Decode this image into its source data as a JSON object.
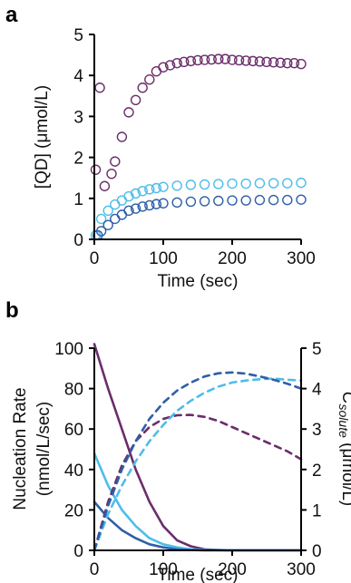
{
  "chart_data": [
    {
      "panel": "a",
      "type": "scatter",
      "xlabel": "Time (sec)",
      "ylabel": "[QD] (μmol/L)",
      "xlim": [
        0,
        300
      ],
      "ylim": [
        0,
        5
      ],
      "xticks": [
        "0",
        "100",
        "200",
        "300"
      ],
      "yticks": [
        "0",
        "1",
        "2",
        "3",
        "4",
        "5"
      ],
      "marker": "open-circle",
      "series": [
        {
          "color": "#6b2d6b",
          "x": [
            2,
            8,
            15,
            25,
            30,
            40,
            50,
            60,
            70,
            80,
            90,
            100,
            110,
            120,
            130,
            140,
            150,
            160,
            170,
            180,
            190,
            200,
            210,
            220,
            230,
            240,
            250,
            260,
            270,
            280,
            290,
            300
          ],
          "y": [
            1.7,
            3.7,
            1.3,
            1.6,
            1.9,
            2.5,
            3.1,
            3.4,
            3.7,
            3.9,
            4.1,
            4.2,
            4.25,
            4.3,
            4.33,
            4.35,
            4.37,
            4.38,
            4.39,
            4.4,
            4.4,
            4.38,
            4.37,
            4.36,
            4.35,
            4.34,
            4.33,
            4.32,
            4.31,
            4.3,
            4.3,
            4.28
          ]
        },
        {
          "color": "#4dbde8",
          "x": [
            2,
            10,
            20,
            30,
            40,
            50,
            60,
            70,
            80,
            90,
            100,
            120,
            140,
            160,
            180,
            200,
            220,
            240,
            260,
            280,
            300
          ],
          "y": [
            0.1,
            0.5,
            0.7,
            0.85,
            0.95,
            1.05,
            1.12,
            1.18,
            1.22,
            1.25,
            1.28,
            1.31,
            1.33,
            1.34,
            1.35,
            1.36,
            1.36,
            1.37,
            1.37,
            1.37,
            1.38
          ]
        },
        {
          "color": "#2f5fa7",
          "x": [
            5,
            10,
            20,
            30,
            40,
            50,
            60,
            70,
            80,
            90,
            100,
            120,
            140,
            160,
            180,
            200,
            220,
            240,
            260,
            280,
            300
          ],
          "y": [
            0.1,
            0.2,
            0.35,
            0.5,
            0.6,
            0.7,
            0.75,
            0.8,
            0.83,
            0.86,
            0.88,
            0.9,
            0.92,
            0.93,
            0.94,
            0.95,
            0.95,
            0.96,
            0.96,
            0.96,
            0.97
          ]
        }
      ]
    },
    {
      "panel": "b",
      "type": "line",
      "xlabel": "Time (sec)",
      "ylabel": "Nucleation Rate (nmol/L/sec)",
      "ylabel_lines": [
        "Nucleation Rate",
        "(nmol/L/sec)"
      ],
      "y2label_main": "C",
      "y2label_sub": "solute",
      "y2label_unit": " (μmol/L)",
      "xlim": [
        0,
        300
      ],
      "ylim": [
        0,
        100
      ],
      "y2lim": [
        0,
        5
      ],
      "xticks": [
        "0",
        "100",
        "200",
        "300"
      ],
      "yticks": [
        "0",
        "20",
        "40",
        "60",
        "80",
        "100"
      ],
      "y2ticks": [
        "0",
        "1",
        "2",
        "3",
        "4",
        "5"
      ],
      "series": [
        {
          "axis": "left",
          "style": "solid",
          "color": "#6b2d6b",
          "x": [
            0,
            20,
            40,
            60,
            80,
            100,
            120,
            140,
            160,
            180,
            200,
            250,
            300
          ],
          "y": [
            102,
            80,
            60,
            40,
            24,
            12,
            5,
            2,
            0.5,
            0.2,
            0,
            0,
            0
          ]
        },
        {
          "axis": "left",
          "style": "solid",
          "color": "#4dbde8",
          "x": [
            0,
            20,
            40,
            60,
            80,
            100,
            120,
            140,
            160,
            200,
            300
          ],
          "y": [
            48,
            32,
            20,
            12,
            6,
            3,
            1.5,
            0.5,
            0.2,
            0,
            0
          ]
        },
        {
          "axis": "left",
          "style": "solid",
          "color": "#2f5fa7",
          "x": [
            0,
            20,
            40,
            60,
            80,
            100,
            120,
            140,
            160,
            200,
            300
          ],
          "y": [
            24,
            16,
            10,
            6,
            3,
            1.5,
            0.5,
            0.2,
            0,
            0,
            0
          ]
        },
        {
          "axis": "right",
          "style": "dashed",
          "color": "#6b2d6b",
          "x": [
            0,
            20,
            40,
            60,
            80,
            100,
            120,
            140,
            160,
            180,
            200,
            220,
            240,
            260,
            280,
            300
          ],
          "y": [
            0,
            1.2,
            2.1,
            2.7,
            3.05,
            3.25,
            3.34,
            3.35,
            3.3,
            3.2,
            3.05,
            2.9,
            2.75,
            2.6,
            2.45,
            2.25
          ]
        },
        {
          "axis": "right",
          "style": "dashed",
          "color": "#4dbde8",
          "x": [
            0,
            20,
            40,
            60,
            80,
            100,
            120,
            140,
            160,
            180,
            200,
            220,
            240,
            260,
            280,
            300
          ],
          "y": [
            0,
            0.9,
            1.6,
            2.2,
            2.7,
            3.1,
            3.45,
            3.7,
            3.9,
            4.05,
            4.15,
            4.2,
            4.23,
            4.25,
            4.22,
            4.2
          ]
        },
        {
          "axis": "right",
          "style": "dashed",
          "color": "#2f5fa7",
          "x": [
            0,
            20,
            40,
            60,
            80,
            100,
            120,
            140,
            160,
            180,
            200,
            220,
            240,
            260,
            280,
            300
          ],
          "y": [
            0,
            1.1,
            2.0,
            2.7,
            3.25,
            3.65,
            3.95,
            4.15,
            4.3,
            4.38,
            4.4,
            4.37,
            4.3,
            4.22,
            4.12,
            4.0
          ]
        }
      ]
    }
  ]
}
